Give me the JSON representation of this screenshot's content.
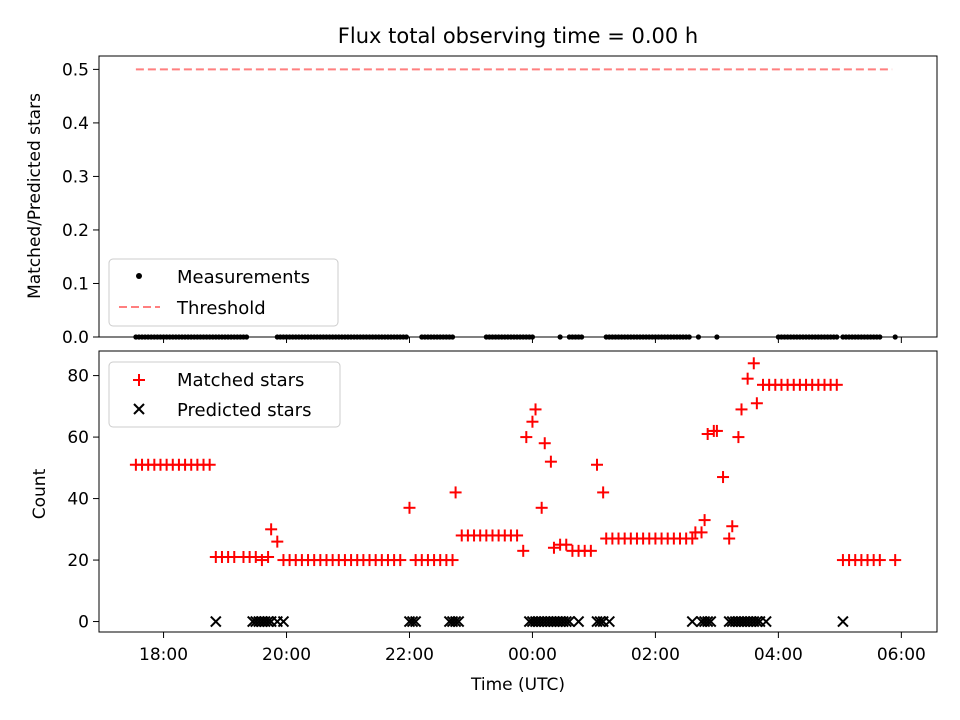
{
  "chart_data": [
    {
      "type": "scatter",
      "title": "Flux total observing time = 0.00 h",
      "ylabel": "Matched/Predicted stars",
      "xlabel": "",
      "xlim": [
        -1.05,
        12.58
      ],
      "ylim": [
        0.0,
        0.525
      ],
      "yticks": [
        0.0,
        0.1,
        0.2,
        0.3,
        0.4,
        0.5
      ],
      "ytick_labels": [
        "0.0",
        "0.1",
        "0.2",
        "0.3",
        "0.4",
        "0.5"
      ],
      "legend": {
        "position": "lower-left",
        "entries": [
          "Measurements",
          "Threshold"
        ]
      },
      "threshold": {
        "name": "Threshold",
        "value": 0.5,
        "x_range": [
          -0.45,
          11.85
        ],
        "color": "#ff7f7f"
      },
      "series": [
        {
          "name": "Measurements",
          "color": "#000000",
          "x": [
            -0.45,
            -0.4,
            -0.35,
            -0.3,
            -0.25,
            -0.2,
            -0.15,
            -0.1,
            -0.05,
            0.0,
            0.05,
            0.1,
            0.15,
            0.2,
            0.25,
            0.3,
            0.35,
            0.4,
            0.45,
            0.5,
            0.55,
            0.6,
            0.65,
            0.7,
            0.75,
            0.8,
            0.85,
            0.9,
            0.95,
            1.0,
            1.05,
            1.1,
            1.15,
            1.2,
            1.25,
            1.3,
            1.35,
            1.85,
            1.9,
            1.95,
            2.0,
            2.05,
            2.1,
            2.15,
            2.2,
            2.25,
            2.3,
            2.35,
            2.4,
            2.45,
            2.5,
            2.55,
            2.6,
            2.65,
            2.7,
            2.75,
            2.8,
            2.85,
            2.9,
            2.95,
            3.0,
            3.05,
            3.1,
            3.15,
            3.2,
            3.25,
            3.3,
            3.35,
            3.4,
            3.45,
            3.5,
            3.55,
            3.6,
            3.65,
            3.7,
            3.75,
            3.8,
            3.85,
            3.9,
            3.95,
            4.2,
            4.25,
            4.3,
            4.35,
            4.4,
            4.45,
            4.5,
            4.55,
            4.6,
            4.65,
            4.7,
            5.25,
            5.3,
            5.35,
            5.4,
            5.45,
            5.5,
            5.55,
            5.6,
            5.65,
            5.7,
            5.75,
            5.8,
            5.85,
            5.9,
            5.95,
            6.0,
            6.45,
            6.6,
            6.65,
            6.7,
            6.75,
            6.8,
            7.2,
            7.25,
            7.3,
            7.35,
            7.4,
            7.45,
            7.5,
            7.55,
            7.6,
            7.65,
            7.7,
            7.75,
            7.8,
            7.85,
            7.9,
            7.95,
            8.0,
            8.05,
            8.1,
            8.15,
            8.2,
            8.25,
            8.3,
            8.35,
            8.4,
            8.45,
            8.5,
            8.55,
            8.7,
            9.0,
            10.0,
            10.05,
            10.1,
            10.15,
            10.2,
            10.25,
            10.3,
            10.35,
            10.4,
            10.45,
            10.5,
            10.55,
            10.6,
            10.65,
            10.7,
            10.75,
            10.8,
            10.85,
            10.9,
            10.95,
            11.05,
            11.1,
            11.15,
            11.2,
            11.25,
            11.3,
            11.35,
            11.4,
            11.45,
            11.5,
            11.55,
            11.6,
            11.65,
            11.9
          ],
          "y": 0.0
        }
      ]
    },
    {
      "type": "scatter",
      "title": "",
      "ylabel": "Count",
      "xlabel": "Time (UTC)",
      "xlim": [
        -1.05,
        12.58
      ],
      "ylim": [
        -3.4,
        88.0
      ],
      "yticks": [
        0,
        20,
        40,
        60,
        80
      ],
      "ytick_labels": [
        "0",
        "20",
        "40",
        "60",
        "80"
      ],
      "xticks": [
        0,
        2,
        4,
        6,
        8,
        10,
        12
      ],
      "xtick_labels": [
        "18:00",
        "20:00",
        "22:00",
        "00:00",
        "02:00",
        "04:00",
        "06:00"
      ],
      "legend": {
        "position": "top-left",
        "entries": [
          "Matched stars",
          "Predicted stars"
        ]
      },
      "series": [
        {
          "name": "Matched stars",
          "marker": "+",
          "color": "#ff0000",
          "points": [
            [
              -0.45,
              51
            ],
            [
              -0.35,
              51
            ],
            [
              -0.25,
              51
            ],
            [
              -0.15,
              51
            ],
            [
              -0.05,
              51
            ],
            [
              0.05,
              51
            ],
            [
              0.15,
              51
            ],
            [
              0.25,
              51
            ],
            [
              0.35,
              51
            ],
            [
              0.45,
              51
            ],
            [
              0.55,
              51
            ],
            [
              0.65,
              51
            ],
            [
              0.75,
              51
            ],
            [
              0.85,
              21
            ],
            [
              0.95,
              21
            ],
            [
              1.05,
              21
            ],
            [
              1.15,
              21
            ],
            [
              1.3,
              21
            ],
            [
              1.4,
              21
            ],
            [
              1.5,
              21
            ],
            [
              1.6,
              20
            ],
            [
              1.7,
              21
            ],
            [
              1.75,
              30
            ],
            [
              1.85,
              26
            ],
            [
              1.95,
              20
            ],
            [
              2.05,
              20
            ],
            [
              2.15,
              20
            ],
            [
              2.25,
              20
            ],
            [
              2.35,
              20
            ],
            [
              2.45,
              20
            ],
            [
              2.55,
              20
            ],
            [
              2.65,
              20
            ],
            [
              2.75,
              20
            ],
            [
              2.85,
              20
            ],
            [
              2.95,
              20
            ],
            [
              3.05,
              20
            ],
            [
              3.15,
              20
            ],
            [
              3.25,
              20
            ],
            [
              3.35,
              20
            ],
            [
              3.45,
              20
            ],
            [
              3.55,
              20
            ],
            [
              3.65,
              20
            ],
            [
              3.75,
              20
            ],
            [
              3.85,
              20
            ],
            [
              4.0,
              37
            ],
            [
              4.1,
              20
            ],
            [
              4.2,
              20
            ],
            [
              4.3,
              20
            ],
            [
              4.4,
              20
            ],
            [
              4.5,
              20
            ],
            [
              4.6,
              20
            ],
            [
              4.7,
              20
            ],
            [
              4.75,
              42
            ],
            [
              4.85,
              28
            ],
            [
              4.95,
              28
            ],
            [
              5.05,
              28
            ],
            [
              5.15,
              28
            ],
            [
              5.25,
              28
            ],
            [
              5.35,
              28
            ],
            [
              5.45,
              28
            ],
            [
              5.55,
              28
            ],
            [
              5.65,
              28
            ],
            [
              5.75,
              28
            ],
            [
              5.85,
              23
            ],
            [
              5.9,
              60
            ],
            [
              6.0,
              65
            ],
            [
              6.05,
              69
            ],
            [
              6.15,
              37
            ],
            [
              6.2,
              58
            ],
            [
              6.3,
              52
            ],
            [
              6.35,
              24
            ],
            [
              6.45,
              25
            ],
            [
              6.55,
              25
            ],
            [
              6.65,
              23
            ],
            [
              6.75,
              23
            ],
            [
              6.85,
              23
            ],
            [
              6.95,
              23
            ],
            [
              7.05,
              51
            ],
            [
              7.15,
              42
            ],
            [
              7.2,
              27
            ],
            [
              7.3,
              27
            ],
            [
              7.4,
              27
            ],
            [
              7.5,
              27
            ],
            [
              7.6,
              27
            ],
            [
              7.7,
              27
            ],
            [
              7.8,
              27
            ],
            [
              7.9,
              27
            ],
            [
              8.0,
              27
            ],
            [
              8.1,
              27
            ],
            [
              8.2,
              27
            ],
            [
              8.3,
              27
            ],
            [
              8.4,
              27
            ],
            [
              8.5,
              27
            ],
            [
              8.6,
              27
            ],
            [
              8.65,
              29
            ],
            [
              8.75,
              29
            ],
            [
              8.8,
              33
            ],
            [
              8.85,
              61
            ],
            [
              8.95,
              62
            ],
            [
              9.0,
              62
            ],
            [
              9.1,
              47
            ],
            [
              9.2,
              27
            ],
            [
              9.25,
              31
            ],
            [
              9.35,
              60
            ],
            [
              9.4,
              69
            ],
            [
              9.5,
              79
            ],
            [
              9.6,
              84
            ],
            [
              9.65,
              71
            ],
            [
              9.75,
              77
            ],
            [
              9.85,
              77
            ],
            [
              9.95,
              77
            ],
            [
              10.05,
              77
            ],
            [
              10.15,
              77
            ],
            [
              10.25,
              77
            ],
            [
              10.35,
              77
            ],
            [
              10.45,
              77
            ],
            [
              10.55,
              77
            ],
            [
              10.65,
              77
            ],
            [
              10.75,
              77
            ],
            [
              10.85,
              77
            ],
            [
              10.95,
              77
            ],
            [
              11.05,
              20
            ],
            [
              11.15,
              20
            ],
            [
              11.25,
              20
            ],
            [
              11.35,
              20
            ],
            [
              11.45,
              20
            ],
            [
              11.55,
              20
            ],
            [
              11.65,
              20
            ],
            [
              11.9,
              20
            ]
          ]
        },
        {
          "name": "Predicted stars",
          "marker": "x",
          "color": "#000000",
          "points": [
            [
              0.85,
              0
            ],
            [
              1.45,
              0
            ],
            [
              1.5,
              0
            ],
            [
              1.55,
              0
            ],
            [
              1.6,
              0
            ],
            [
              1.65,
              0
            ],
            [
              1.7,
              0
            ],
            [
              1.75,
              0
            ],
            [
              1.85,
              0
            ],
            [
              1.95,
              0
            ],
            [
              4.0,
              0
            ],
            [
              4.05,
              0
            ],
            [
              4.1,
              0
            ],
            [
              4.65,
              0
            ],
            [
              4.7,
              0
            ],
            [
              4.75,
              0
            ],
            [
              4.8,
              0
            ],
            [
              5.95,
              0
            ],
            [
              6.0,
              0
            ],
            [
              6.05,
              0
            ],
            [
              6.1,
              0
            ],
            [
              6.15,
              0
            ],
            [
              6.2,
              0
            ],
            [
              6.25,
              0
            ],
            [
              6.3,
              0
            ],
            [
              6.35,
              0
            ],
            [
              6.4,
              0
            ],
            [
              6.45,
              0
            ],
            [
              6.5,
              0
            ],
            [
              6.55,
              0
            ],
            [
              6.6,
              0
            ],
            [
              6.75,
              0
            ],
            [
              7.05,
              0
            ],
            [
              7.1,
              0
            ],
            [
              7.15,
              0
            ],
            [
              7.25,
              0
            ],
            [
              8.6,
              0
            ],
            [
              8.75,
              0
            ],
            [
              8.8,
              0
            ],
            [
              8.85,
              0
            ],
            [
              8.9,
              0
            ],
            [
              9.2,
              0
            ],
            [
              9.25,
              0
            ],
            [
              9.3,
              0
            ],
            [
              9.35,
              0
            ],
            [
              9.4,
              0
            ],
            [
              9.45,
              0
            ],
            [
              9.5,
              0
            ],
            [
              9.55,
              0
            ],
            [
              9.6,
              0
            ],
            [
              9.65,
              0
            ],
            [
              9.7,
              0
            ],
            [
              9.8,
              0
            ],
            [
              11.05,
              0
            ]
          ]
        }
      ]
    }
  ]
}
